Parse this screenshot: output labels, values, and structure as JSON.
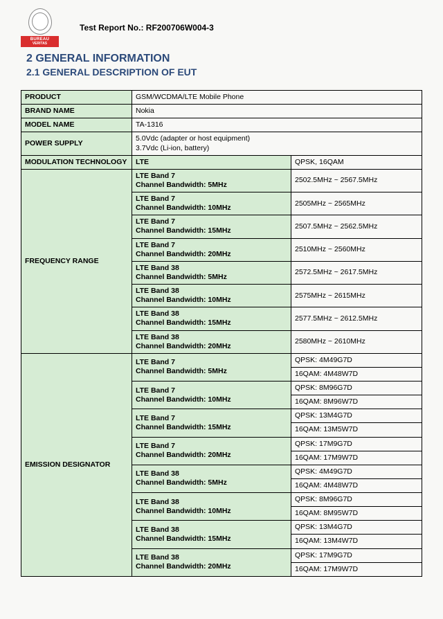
{
  "header": {
    "logo_top": "BUREAU",
    "logo_bottom": "VERITAS",
    "report_label": "Test Report No.:",
    "report_no": "RF200706W004-3"
  },
  "section": {
    "num_title": "2   GENERAL INFORMATION",
    "sub_title": "2.1 GENERAL DESCRIPTION OF EUT"
  },
  "rows": {
    "product_label": "PRODUCT",
    "product_value": "GSM/WCDMA/LTE Mobile Phone",
    "brand_label": "BRAND NAME",
    "brand_value": "Nokia",
    "model_label": "MODEL NAME",
    "model_value": "TA-1316",
    "power_label": "POWER SUPPLY",
    "power_v1": "5.0Vdc (adapter or host equipment)",
    "power_v2": "3.7Vdc (Li-ion, battery)",
    "mod_label": "MODULATION TECHNOLOGY",
    "mod_c1": "LTE",
    "mod_c2": "QPSK, 16QAM",
    "freq_label": "FREQUENCY RANGE",
    "emis_label": "EMISSION DESIGNATOR"
  },
  "freq": [
    {
      "b1": "LTE Band 7",
      "b2": "Channel Bandwidth: 5MHz",
      "v": "2502.5MHz ~ 2567.5MHz"
    },
    {
      "b1": "LTE Band 7",
      "b2": "Channel Bandwidth: 10MHz",
      "v": "2505MHz ~ 2565MHz"
    },
    {
      "b1": "LTE Band 7",
      "b2": "Channel Bandwidth: 15MHz",
      "v": "2507.5MHz ~ 2562.5MHz"
    },
    {
      "b1": "LTE Band 7",
      "b2": "Channel Bandwidth: 20MHz",
      "v": "2510MHz ~ 2560MHz"
    },
    {
      "b1": "LTE Band 38",
      "b2": "Channel Bandwidth: 5MHz",
      "v": "2572.5MHz ~ 2617.5MHz"
    },
    {
      "b1": "LTE Band 38",
      "b2": "Channel Bandwidth: 10MHz",
      "v": "2575MHz ~ 2615MHz"
    },
    {
      "b1": "LTE Band 38",
      "b2": "Channel Bandwidth: 15MHz",
      "v": "2577.5MHz ~ 2612.5MHz"
    },
    {
      "b1": "LTE Band 38",
      "b2": "Channel Bandwidth: 20MHz",
      "v": "2580MHz ~ 2610MHz"
    }
  ],
  "emis": [
    {
      "b1": "LTE Band 7",
      "b2": "Channel Bandwidth: 5MHz",
      "v1": "QPSK: 4M49G7D",
      "v2": "16QAM: 4M48W7D"
    },
    {
      "b1": "LTE Band 7",
      "b2": "Channel Bandwidth: 10MHz",
      "v1": "QPSK: 8M96G7D",
      "v2": "16QAM: 8M96W7D"
    },
    {
      "b1": "LTE Band 7",
      "b2": "Channel Bandwidth: 15MHz",
      "v1": "QPSK: 13M4G7D",
      "v2": "16QAM: 13M5W7D"
    },
    {
      "b1": "LTE Band 7",
      "b2": "Channel Bandwidth: 20MHz",
      "v1": "QPSK: 17M9G7D",
      "v2": "16QAM: 17M9W7D"
    },
    {
      "b1": "LTE Band 38",
      "b2": "Channel Bandwidth: 5MHz",
      "v1": "QPSK: 4M49G7D",
      "v2": "16QAM: 4M48W7D"
    },
    {
      "b1": "LTE Band 38",
      "b2": "Channel Bandwidth: 10MHz",
      "v1": "QPSK: 8M96G7D",
      "v2": "16QAM: 8M95W7D"
    },
    {
      "b1": "LTE Band 38",
      "b2": "Channel Bandwidth: 15MHz",
      "v1": "QPSK: 13M4G7D",
      "v2": "16QAM: 13M4W7D"
    },
    {
      "b1": "LTE Band 38",
      "b2": "Channel Bandwidth: 20MHz",
      "v1": "QPSK: 17M9G7D",
      "v2": "16QAM: 17M9W7D"
    }
  ]
}
